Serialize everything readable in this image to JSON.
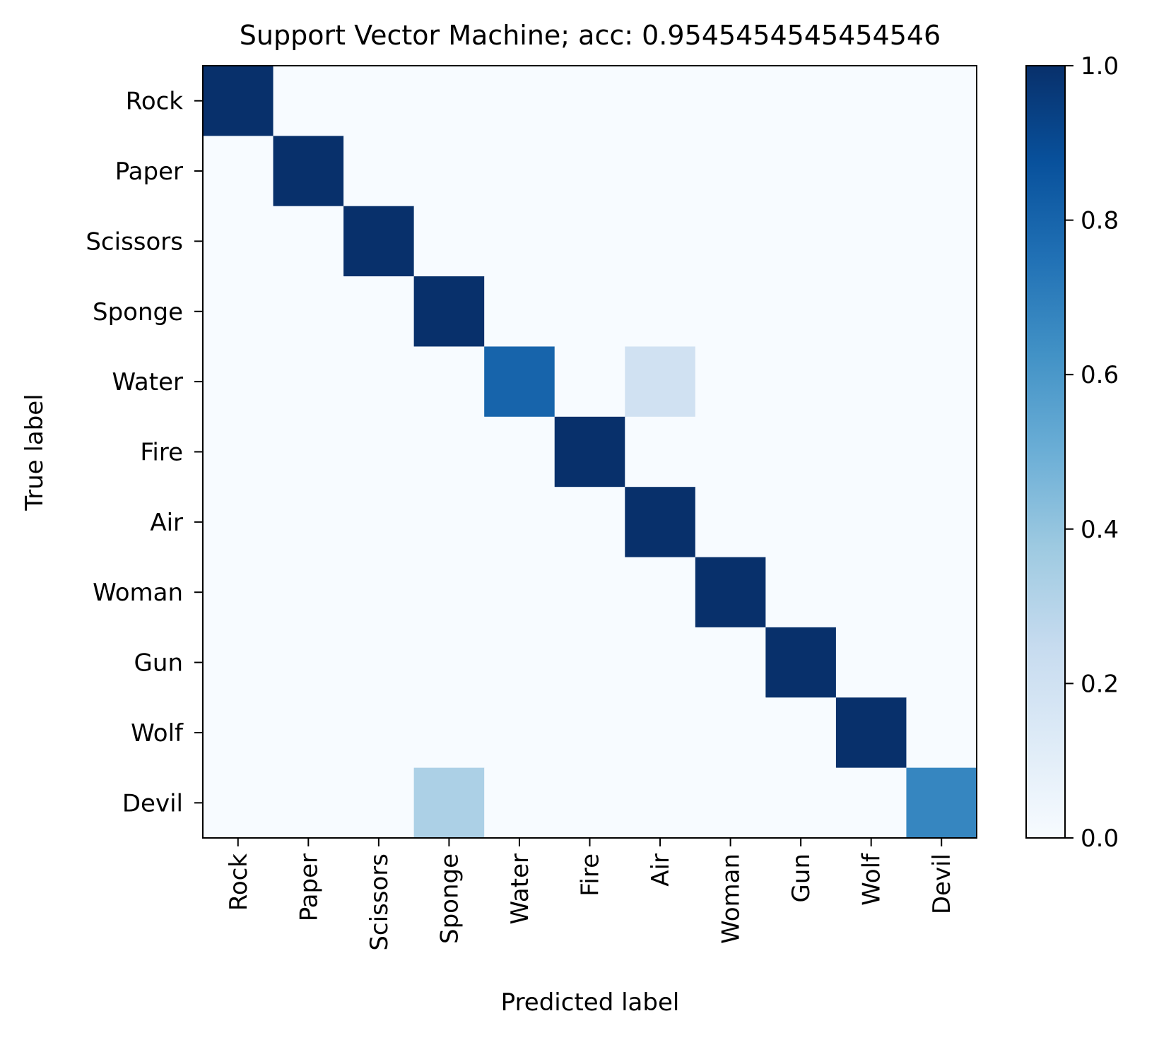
{
  "chart_data": {
    "type": "heatmap",
    "title": "Support Vector Machine; acc: 0.9545454545454546",
    "xlabel": "Predicted label",
    "ylabel": "True label",
    "x_categories": [
      "Rock",
      "Paper",
      "Scissors",
      "Sponge",
      "Water",
      "Fire",
      "Air",
      "Woman",
      "Gun",
      "Wolf",
      "Devil"
    ],
    "y_categories": [
      "Rock",
      "Paper",
      "Scissors",
      "Sponge",
      "Water",
      "Fire",
      "Air",
      "Woman",
      "Gun",
      "Wolf",
      "Devil"
    ],
    "values": [
      [
        1,
        0,
        0,
        0,
        0,
        0,
        0,
        0,
        0,
        0,
        0
      ],
      [
        0,
        1,
        0,
        0,
        0,
        0,
        0,
        0,
        0,
        0,
        0
      ],
      [
        0,
        0,
        1,
        0,
        0,
        0,
        0,
        0,
        0,
        0,
        0
      ],
      [
        0,
        0,
        0,
        1,
        0,
        0,
        0,
        0,
        0,
        0,
        0
      ],
      [
        0,
        0,
        0,
        0,
        0.8,
        0,
        0.2,
        0,
        0,
        0,
        0
      ],
      [
        0,
        0,
        0,
        0,
        0,
        1,
        0,
        0,
        0,
        0,
        0
      ],
      [
        0,
        0,
        0,
        0,
        0,
        0,
        1,
        0,
        0,
        0,
        0
      ],
      [
        0,
        0,
        0,
        0,
        0,
        0,
        0,
        1,
        0,
        0,
        0
      ],
      [
        0,
        0,
        0,
        0,
        0,
        0,
        0,
        0,
        1,
        0,
        0
      ],
      [
        0,
        0,
        0,
        0,
        0,
        0,
        0,
        0,
        0,
        1,
        0
      ],
      [
        0,
        0,
        0,
        0.33,
        0,
        0,
        0,
        0,
        0,
        0,
        0.67
      ]
    ],
    "colorbar": {
      "colormap": "Blues",
      "range": [
        0.0,
        1.0
      ],
      "ticks": [
        "0.0",
        "0.2",
        "0.4",
        "0.6",
        "0.8",
        "1.0"
      ]
    },
    "grid": false
  }
}
